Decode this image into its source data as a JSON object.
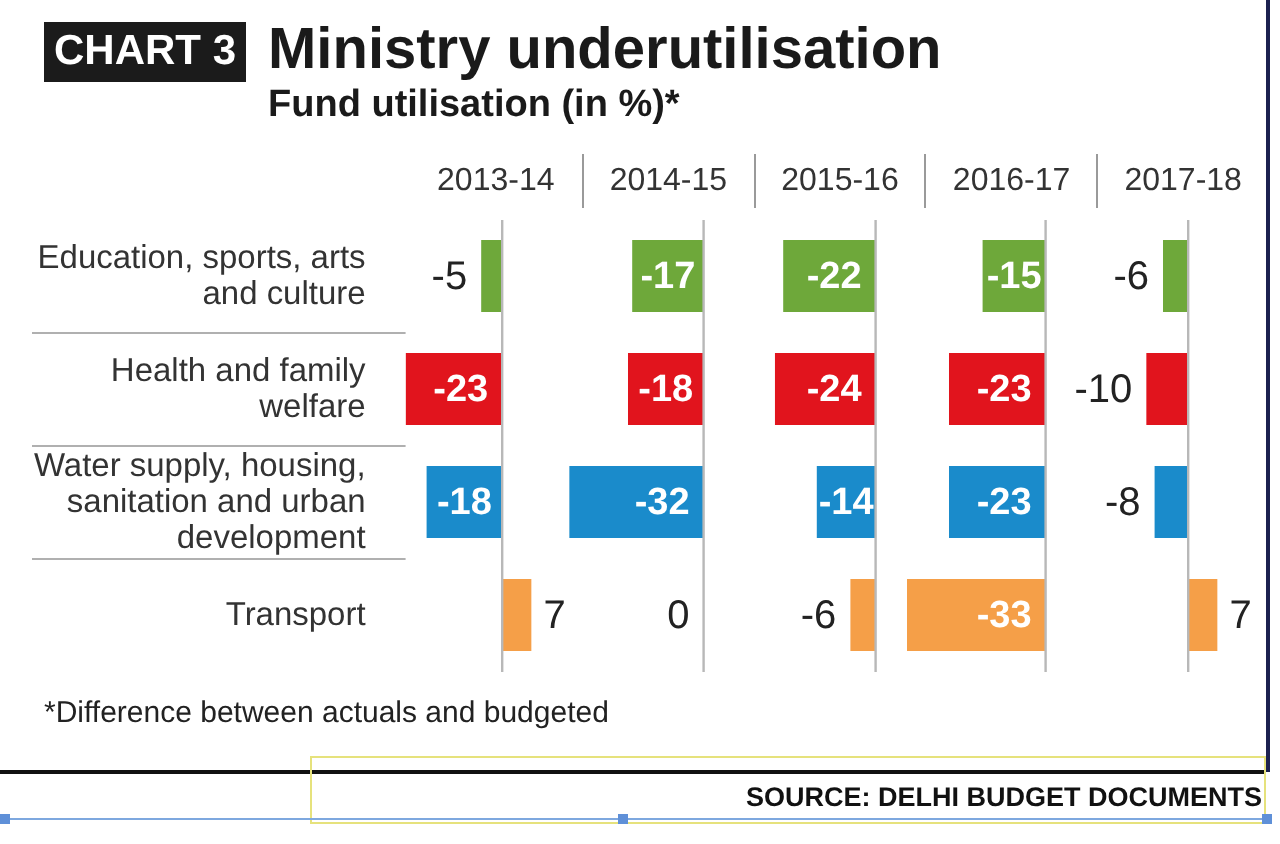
{
  "chart_data": [
    {
      "type": "other",
      "title": "Ministry underutilisation",
      "subtitle": "Fund utilisation (in %)*",
      "annotations": [
        "CHART 3",
        "*Difference between actuals and budgeted",
        "SOURCE: DELHI BUDGET DOCUMENTS"
      ]
    },
    {
      "type": "bar",
      "orientation": "horizontal",
      "title": "2013-14",
      "categories": [
        "Education, sports, arts and culture",
        "Health and family welfare",
        "Water supply, housing, sanitation and urban development",
        "Transport"
      ],
      "values": [
        -5,
        -23,
        -18,
        7
      ],
      "colors": [
        "#6ea83a",
        "#e1141d",
        "#1a8bcb",
        "#f59f48"
      ],
      "data_labels": true,
      "tick_labels": "y"
    },
    {
      "type": "bar",
      "orientation": "horizontal",
      "title": "2014-15",
      "categories": [
        null,
        null,
        null,
        null
      ],
      "values": [
        -17,
        -18,
        -32,
        0
      ],
      "colors": [
        "#6ea83a",
        "#e1141d",
        "#1a8bcb",
        "#f59f48"
      ],
      "data_labels": true,
      "tick_labels": false
    },
    {
      "type": "bar",
      "orientation": "horizontal",
      "title": "2015-16",
      "categories": [
        null,
        null,
        null,
        null
      ],
      "values": [
        -22,
        -24,
        -14,
        -6
      ],
      "colors": [
        "#6ea83a",
        "#e1141d",
        "#1a8bcb",
        "#f59f48"
      ],
      "data_labels": true,
      "tick_labels": false
    },
    {
      "type": "bar",
      "orientation": "horizontal",
      "title": "2016-17",
      "categories": [
        null,
        null,
        null,
        null
      ],
      "values": [
        -15,
        -23,
        -23,
        -33
      ],
      "colors": [
        "#6ea83a",
        "#e1141d",
        "#1a8bcb",
        "#f59f48"
      ],
      "data_labels": true,
      "tick_labels": false
    },
    {
      "type": "bar",
      "orientation": "horizontal",
      "title": "2017-18",
      "categories": [
        null,
        null,
        null,
        null
      ],
      "values": [
        -6,
        -10,
        -8,
        7
      ],
      "colors": [
        "#6ea83a",
        "#e1141d",
        "#1a8bcb",
        "#f59f48"
      ],
      "data_labels": true,
      "tick_labels": false
    }
  ]
}
